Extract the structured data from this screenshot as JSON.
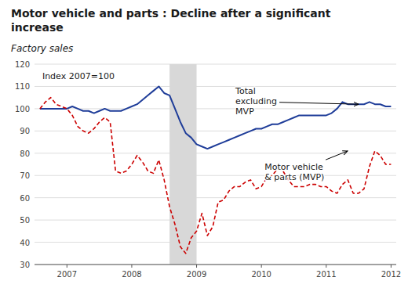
{
  "chart_data": {
    "type": "line",
    "title": "Motor vehicle and parts : Decline after a significant\nincrease",
    "title_color": "#1a1a1a",
    "subtitle": "Factory sales",
    "subtitle_color": "#1a1a1a",
    "background_color": "#ffffff",
    "x": [
      2006.583,
      2006.667,
      2006.75,
      2006.833,
      2006.917,
      2007.0,
      2007.083,
      2007.167,
      2007.25,
      2007.333,
      2007.417,
      2007.5,
      2007.583,
      2007.667,
      2007.75,
      2007.833,
      2007.917,
      2008.0,
      2008.083,
      2008.167,
      2008.25,
      2008.333,
      2008.417,
      2008.5,
      2008.583,
      2008.667,
      2008.75,
      2008.833,
      2008.917,
      2009.0,
      2009.083,
      2009.167,
      2009.25,
      2009.333,
      2009.417,
      2009.5,
      2009.583,
      2009.667,
      2009.75,
      2009.833,
      2009.917,
      2010.0,
      2010.083,
      2010.167,
      2010.25,
      2010.333,
      2010.417,
      2010.5,
      2010.583,
      2010.667,
      2010.75,
      2010.833,
      2010.917,
      2011.0,
      2011.083,
      2011.167,
      2011.25,
      2011.333,
      2011.417,
      2011.5,
      2011.583,
      2011.667,
      2011.75,
      2011.833,
      2011.917,
      2012.0
    ],
    "series": [
      {
        "color": "#1f3d99",
        "line_style": "solid",
        "values": [
          100,
          100,
          100,
          100,
          100,
          100,
          101,
          100,
          99,
          99,
          98,
          99,
          100,
          99,
          99,
          99,
          100,
          101,
          102,
          104,
          106,
          108,
          110,
          107,
          106,
          100,
          94,
          89,
          87,
          84,
          83,
          82,
          83,
          84,
          85,
          86,
          87,
          88,
          89,
          90,
          91,
          91,
          92,
          93,
          93,
          94,
          95,
          96,
          97,
          97,
          97,
          97,
          97,
          97,
          98,
          100,
          103,
          102,
          102,
          102,
          102,
          103,
          102,
          102,
          101,
          101
        ]
      },
      {
        "color": "#cc0000",
        "line_style": "dashed",
        "values": [
          100,
          103,
          105,
          102,
          101,
          100,
          97,
          92,
          90,
          89,
          91,
          94,
          96,
          94,
          72,
          71,
          72,
          75,
          79,
          76,
          72,
          71,
          77,
          68,
          56,
          48,
          38,
          35,
          42,
          45,
          53,
          43,
          47,
          58,
          59,
          63,
          65,
          65,
          67,
          68,
          64,
          65,
          69,
          70,
          73,
          72,
          68,
          65,
          65,
          65,
          66,
          66,
          65,
          65,
          63,
          62,
          66,
          68,
          62,
          62,
          64,
          74,
          81,
          79,
          75,
          75
        ]
      }
    ],
    "shaded_region": {
      "start": 2008.583,
      "end": 2009.0,
      "color": "#d8d8d8"
    },
    "xlim": [
      2006.5,
      2012.08
    ],
    "xticks": [
      2007,
      2008,
      2009,
      2010,
      2011,
      2012
    ],
    "ylim": [
      30,
      120
    ],
    "yticks": [
      30,
      40,
      50,
      60,
      70,
      80,
      90,
      100,
      110,
      120
    ],
    "grid": true,
    "annotations": [
      {
        "text": "Index 2007=100",
        "text_x": 2006.62,
        "text_y": 117
      },
      {
        "text": "Total\nexcluding\nMVP",
        "text_x": 2009.6,
        "text_y": 110,
        "x": 2011.5,
        "y": 102
      },
      {
        "text": "Motor vehicle\n& parts (MVP)",
        "text_x": 2010.05,
        "text_y": 76,
        "x": 2011.33,
        "y": 81
      }
    ]
  }
}
